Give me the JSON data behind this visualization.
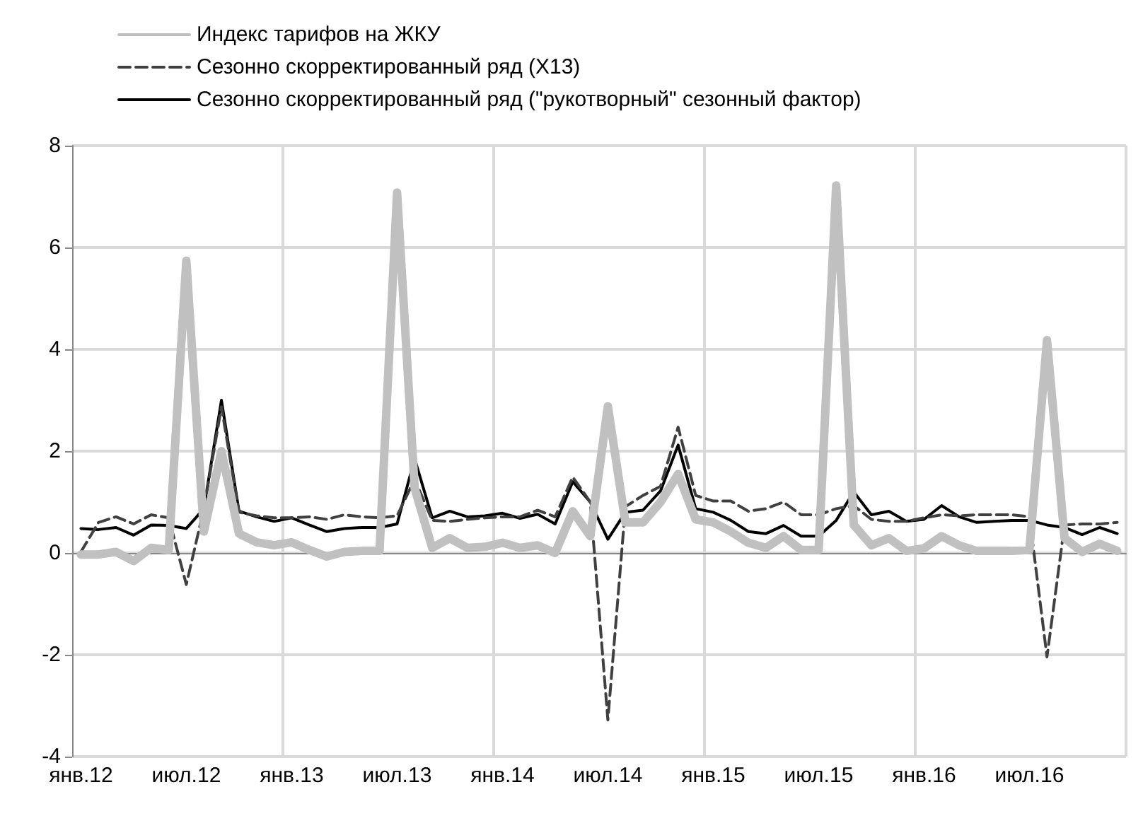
{
  "chart_data": {
    "type": "line",
    "categories": [
      "янв.12",
      null,
      null,
      null,
      null,
      null,
      "июл.12",
      null,
      null,
      null,
      null,
      null,
      "янв.13",
      null,
      null,
      null,
      null,
      null,
      "июл.13",
      null,
      null,
      null,
      null,
      null,
      "янв.14",
      null,
      null,
      null,
      null,
      null,
      "июл.14",
      null,
      null,
      null,
      null,
      null,
      "янв.15",
      null,
      null,
      null,
      null,
      null,
      "июл.15",
      null,
      null,
      null,
      null,
      null,
      "янв.16",
      null,
      null,
      null,
      null,
      null,
      "июл.16",
      null,
      null,
      null,
      null,
      null
    ],
    "series": [
      {
        "name": "Индекс тарифов на ЖКУ",
        "color": "#c0c0c0",
        "line_style": "solid",
        "values": [
          -0.03,
          -0.03,
          0.02,
          -0.16,
          0.1,
          0.06,
          5.74,
          0.42,
          2.0,
          0.38,
          0.21,
          0.15,
          0.21,
          0.06,
          -0.07,
          0.02,
          0.04,
          0.04,
          7.08,
          1.27,
          0.1,
          0.29,
          0.1,
          0.12,
          0.2,
          0.1,
          0.15,
          0,
          0.82,
          0.33,
          2.88,
          0.6,
          0.6,
          1.0,
          1.55,
          0.66,
          0.6,
          0.42,
          0.2,
          0.1,
          0.33,
          0.06,
          0.06,
          7.22,
          0.55,
          0.15,
          0.29,
          0.04,
          0.09,
          0.33,
          0.15,
          0.04,
          0.04,
          0.04,
          0.06,
          4.18,
          0.29,
          0.02,
          0.18,
          0.04
        ]
      },
      {
        "name": "Сезонно скорректированный ряд (X13)",
        "color": "#404040",
        "line_style": "dashed",
        "values": [
          0.02,
          0.6,
          0.71,
          0.57,
          0.75,
          0.69,
          -0.62,
          0.87,
          2.87,
          0.8,
          0.73,
          0.69,
          0.69,
          0.71,
          0.66,
          0.75,
          0.71,
          0.69,
          0.73,
          1.45,
          0.64,
          0.62,
          0.66,
          0.69,
          0.71,
          0.71,
          0.84,
          0.71,
          1.49,
          1.0,
          -3.28,
          0.91,
          1.13,
          1.31,
          2.47,
          1.13,
          1.02,
          1.02,
          0.82,
          0.87,
          1.0,
          0.75,
          0.75,
          0.87,
          0.93,
          0.66,
          0.62,
          0.62,
          0.69,
          0.75,
          0.73,
          0.75,
          0.75,
          0.75,
          0.71,
          -2.04,
          0.55,
          0.57,
          0.57,
          0.6
        ]
      },
      {
        "name": "Сезонно скорректированный ряд (\"рукотворный\" сезонный фактор)",
        "color": "#000000",
        "line_style": "solid",
        "values": [
          0.48,
          0.46,
          0.5,
          0.35,
          0.55,
          0.54,
          0.48,
          0.87,
          3.0,
          0.82,
          0.71,
          0.62,
          0.69,
          0.55,
          0.42,
          0.48,
          0.5,
          0.5,
          0.57,
          1.85,
          0.69,
          0.82,
          0.71,
          0.73,
          0.78,
          0.68,
          0.76,
          0.57,
          1.4,
          1.0,
          0.27,
          0.8,
          0.84,
          1.22,
          2.12,
          0.87,
          0.8,
          0.64,
          0.42,
          0.38,
          0.54,
          0.33,
          0.33,
          0.64,
          1.2,
          0.75,
          0.82,
          0.62,
          0.66,
          0.93,
          0.71,
          0.6,
          0.62,
          0.64,
          0.64,
          0.55,
          0.5,
          0.36,
          0.5,
          0.38
        ]
      }
    ],
    "ylim": [
      -4,
      8
    ],
    "yticks": [
      -4,
      -2,
      0,
      2,
      4,
      6,
      8
    ],
    "grid": true,
    "legend": "top left",
    "marker": "none"
  }
}
